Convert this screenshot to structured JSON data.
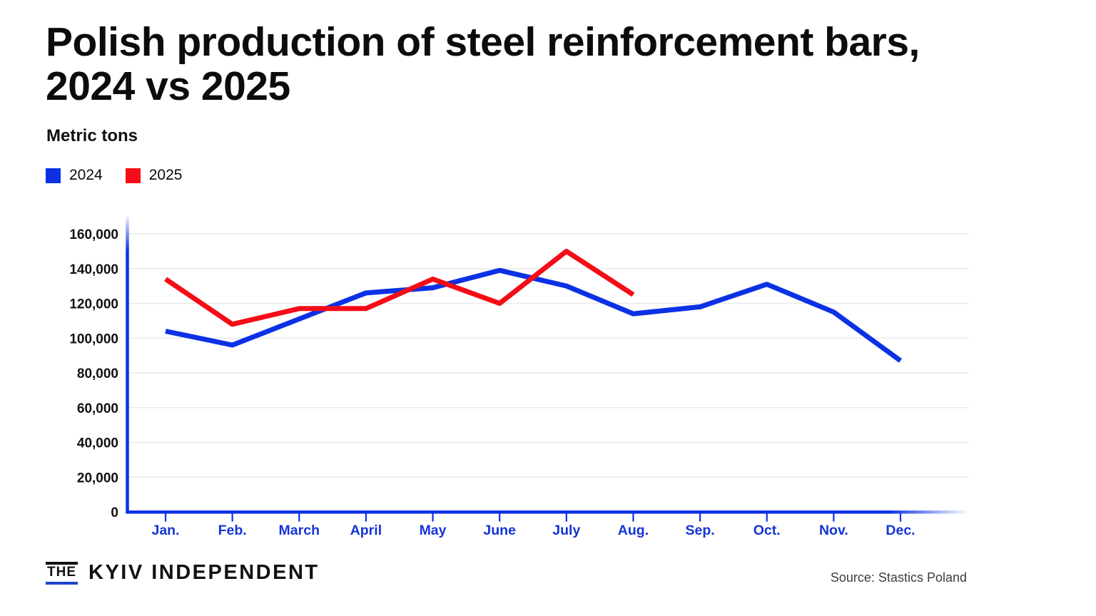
{
  "title_lines": [
    "Polish production of steel reinforcement bars,",
    "2024 vs 2025"
  ],
  "subtitle": "Metric tons",
  "legend": {
    "items": [
      {
        "label": "2024",
        "color": "#0c31e5"
      },
      {
        "label": "2025",
        "color": "#f40d17"
      }
    ]
  },
  "footer": {
    "brand_the": "THE",
    "brand_name": "KYIV INDEPENDENT",
    "source": "Source: Stastics Poland"
  },
  "chart_data": {
    "type": "line",
    "title": "Polish production of steel reinforcement bars, 2024 vs 2025",
    "ylabel": "Metric tons",
    "xlabel": "",
    "categories": [
      "Jan.",
      "Feb.",
      "March",
      "April",
      "May",
      "June",
      "July",
      "Aug.",
      "Sep.",
      "Oct.",
      "Nov.",
      "Dec."
    ],
    "series": [
      {
        "name": "2024",
        "color": "#0c31e5",
        "values": [
          104000,
          96000,
          111000,
          126000,
          129000,
          139000,
          130000,
          114000,
          118000,
          131000,
          115000,
          87000
        ]
      },
      {
        "name": "2025",
        "color": "#f40d17",
        "values": [
          134000,
          108000,
          117000,
          117000,
          134000,
          120000,
          150000,
          125000,
          null,
          null,
          null,
          null
        ]
      }
    ],
    "ylim": [
      0,
      160000
    ],
    "ytick_step": 20000,
    "grid": true,
    "legend_position": "top-left",
    "colors": {
      "axis": "#0c31e5",
      "grid": "#e9e9e9",
      "xtick_label": "#1434d6",
      "ytick_label": "#111111"
    }
  }
}
